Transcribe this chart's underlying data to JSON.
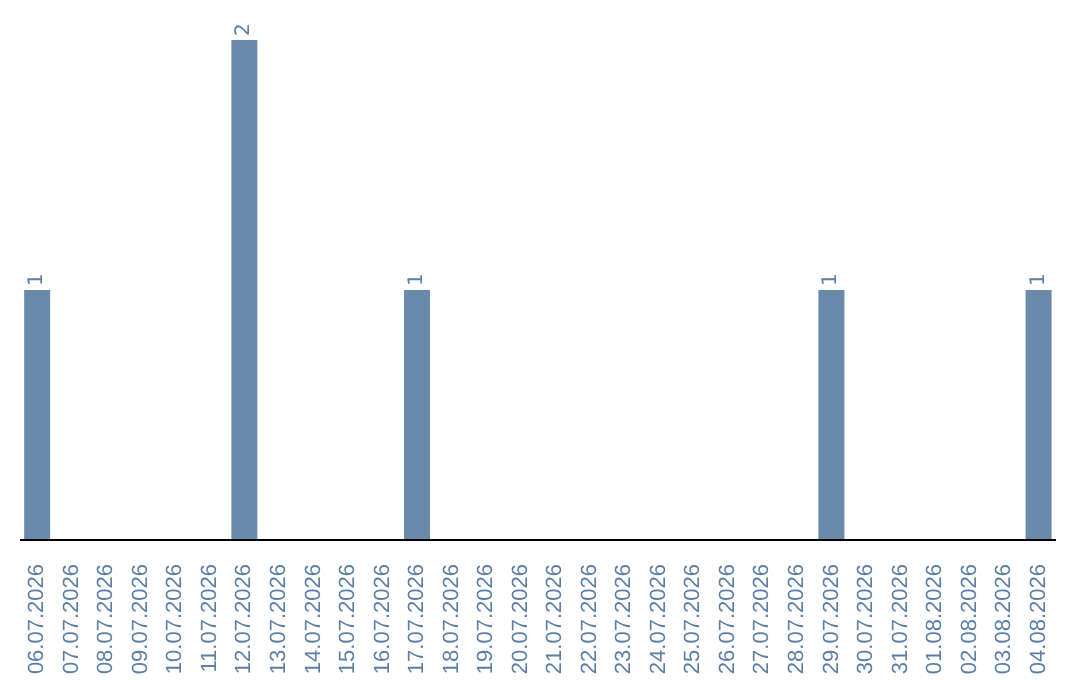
{
  "chart_data": {
    "type": "bar",
    "categories": [
      "06.07.2026",
      "07.07.2026",
      "08.07.2026",
      "09.07.2026",
      "10.07.2026",
      "11.07.2026",
      "12.07.2026",
      "13.07.2026",
      "14.07.2026",
      "15.07.2026",
      "16.07.2026",
      "17.07.2026",
      "18.07.2026",
      "19.07.2026",
      "20.07.2026",
      "21.07.2026",
      "22.07.2026",
      "23.07.2026",
      "24.07.2026",
      "25.07.2026",
      "26.07.2026",
      "27.07.2026",
      "28.07.2026",
      "29.07.2026",
      "30.07.2026",
      "31.07.2026",
      "01.08.2026",
      "02.08.2026",
      "03.08.2026",
      "04.08.2026"
    ],
    "values": [
      1,
      0,
      0,
      0,
      0,
      0,
      2,
      0,
      0,
      0,
      0,
      1,
      0,
      0,
      0,
      0,
      0,
      0,
      0,
      0,
      0,
      0,
      0,
      1,
      0,
      0,
      0,
      0,
      0,
      1
    ],
    "value_labels": [
      "1",
      null,
      null,
      null,
      null,
      null,
      "2",
      null,
      null,
      null,
      null,
      "1",
      null,
      null,
      null,
      null,
      null,
      null,
      null,
      null,
      null,
      null,
      null,
      "1",
      null,
      null,
      null,
      null,
      null,
      "1"
    ],
    "color": "#6a8aab",
    "grid": false,
    "legend": false
  }
}
